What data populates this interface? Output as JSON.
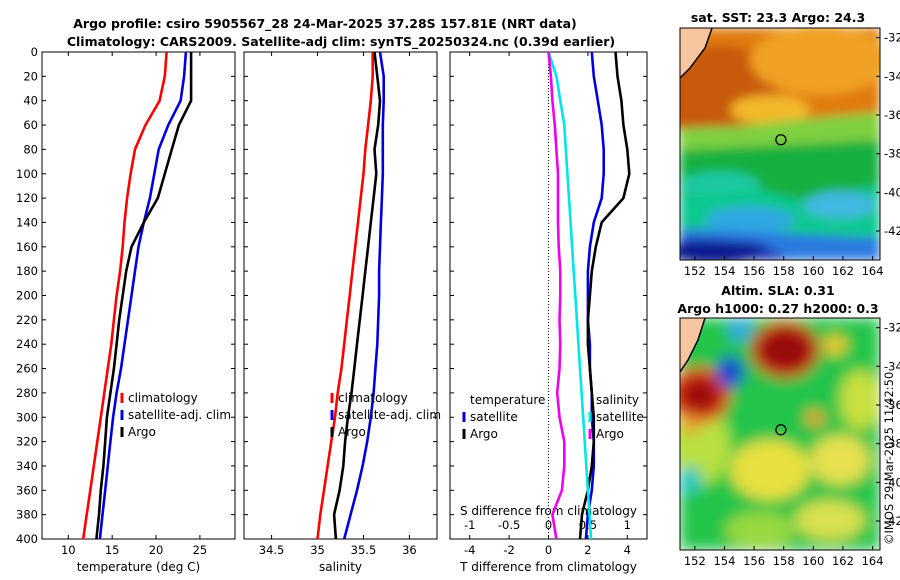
{
  "figure": {
    "title_line1": "Argo profile: csiro 5905567_28 24-Mar-2025 37.28S 157.81E (NRT data)",
    "title_line2": "Climatology: CARS2009. Satellite-adj clim: synTS_20250324.nc (0.39d earlier)",
    "timestamp": "©IMOS 29-Mar-2025 11:42:50"
  },
  "colors": {
    "climatology": "#ff0000",
    "satellite": "#0000dd",
    "argo": "#000000",
    "salinity_satellite": "#00e5e5",
    "salinity_argo": "#ee00ee"
  },
  "chart_data": [
    {
      "type": "line",
      "id": "temperature",
      "xlabel": "temperature (deg C)",
      "ylabel": "",
      "xlim": [
        7,
        29
      ],
      "ylim": [
        0,
        400
      ],
      "y_reversed": true,
      "xticks": [
        10,
        15,
        20,
        25
      ],
      "yticks": [
        0,
        20,
        40,
        60,
        80,
        100,
        120,
        140,
        160,
        180,
        200,
        220,
        240,
        260,
        280,
        300,
        320,
        340,
        360,
        380,
        400
      ],
      "legend": [
        "climatology",
        "satellite-adj. clim",
        "Argo"
      ],
      "legend_position": "lower-right",
      "depth": [
        0,
        20,
        40,
        60,
        80,
        100,
        120,
        140,
        160,
        180,
        200,
        220,
        240,
        260,
        280,
        300,
        320,
        340,
        360,
        380,
        400
      ],
      "series": [
        {
          "name": "climatology",
          "color_key": "climatology",
          "values": [
            21.2,
            21.0,
            20.4,
            18.8,
            17.6,
            17.1,
            16.7,
            16.4,
            16.2,
            15.9,
            15.5,
            15.2,
            14.9,
            14.5,
            14.1,
            13.7,
            13.3,
            12.9,
            12.5,
            12.1,
            11.7
          ]
        },
        {
          "name": "satellite-adj. clim",
          "color_key": "satellite",
          "values": [
            23.4,
            23.2,
            22.8,
            21.4,
            20.3,
            19.8,
            19.3,
            18.6,
            18.0,
            17.6,
            17.2,
            16.8,
            16.4,
            16.0,
            15.5,
            15.1,
            14.8,
            14.5,
            14.2,
            13.9,
            13.6
          ]
        },
        {
          "name": "Argo",
          "color_key": "argo",
          "values": [
            24.0,
            24.0,
            24.0,
            22.6,
            21.8,
            21.0,
            20.2,
            18.6,
            17.2,
            16.6,
            16.2,
            15.8,
            15.5,
            15.2,
            14.8,
            14.4,
            14.2,
            14.0,
            13.7,
            13.5,
            13.2
          ]
        }
      ]
    },
    {
      "type": "line",
      "id": "salinity",
      "xlabel": "salinity",
      "xlim": [
        34.2,
        36.3
      ],
      "ylim": [
        0,
        400
      ],
      "y_reversed": true,
      "xticks": [
        34.5,
        35,
        35.5,
        36
      ],
      "legend": [
        "climatology",
        "satellite-adj. clim",
        "Argo"
      ],
      "legend_position": "lower-right",
      "depth": [
        0,
        20,
        40,
        60,
        80,
        100,
        120,
        140,
        160,
        180,
        200,
        220,
        240,
        260,
        280,
        300,
        320,
        340,
        360,
        380,
        400
      ],
      "series": [
        {
          "name": "climatology",
          "color_key": "climatology",
          "values": [
            35.6,
            35.6,
            35.58,
            35.55,
            35.52,
            35.5,
            35.47,
            35.44,
            35.41,
            35.38,
            35.35,
            35.32,
            35.29,
            35.26,
            35.22,
            35.19,
            35.15,
            35.11,
            35.07,
            35.03,
            35.0
          ]
        },
        {
          "name": "satellite-adj. clim",
          "color_key": "satellite",
          "values": [
            35.68,
            35.72,
            35.72,
            35.71,
            35.71,
            35.71,
            35.7,
            35.69,
            35.68,
            35.67,
            35.67,
            35.66,
            35.65,
            35.63,
            35.61,
            35.58,
            35.54,
            35.49,
            35.43,
            35.36,
            35.29
          ]
        },
        {
          "name": "Argo",
          "color_key": "argo",
          "values": [
            35.62,
            35.65,
            35.68,
            35.66,
            35.62,
            35.64,
            35.61,
            35.58,
            35.55,
            35.52,
            35.49,
            35.46,
            35.43,
            35.4,
            35.37,
            35.33,
            35.3,
            35.28,
            35.24,
            35.18,
            35.2
          ]
        }
      ]
    },
    {
      "type": "line",
      "id": "differences",
      "xlabel": "T difference from climatology",
      "x2label": "S difference from climatology",
      "xlim": [
        -5,
        5
      ],
      "x2lim": [
        -1.25,
        1.25
      ],
      "ylim": [
        0,
        400
      ],
      "y_reversed": true,
      "xticks": [
        -4,
        -2,
        0,
        2,
        4
      ],
      "x2ticks": [
        -1,
        -0.5,
        0,
        0.5,
        1
      ],
      "x2ticklabels": [
        "-1",
        "-0.5",
        "0",
        "0.5",
        "1"
      ],
      "zero_line": 0,
      "legend_groups": [
        {
          "heading": "temperature",
          "items": [
            "satellite",
            "Argo"
          ]
        },
        {
          "heading": "salinity",
          "items": [
            "satellite",
            "Argo"
          ]
        }
      ],
      "depth": [
        0,
        20,
        40,
        60,
        80,
        100,
        120,
        140,
        160,
        180,
        200,
        220,
        240,
        260,
        280,
        300,
        320,
        340,
        360,
        380,
        400
      ],
      "series": [
        {
          "name": "temperature satellite",
          "color_key": "satellite",
          "axis": "T",
          "values": [
            2.2,
            2.3,
            2.5,
            2.7,
            2.8,
            2.8,
            2.7,
            2.3,
            2.1,
            2.0,
            2.0,
            2.0,
            2.1,
            2.1,
            2.2,
            2.2,
            2.3,
            2.3,
            2.2,
            2.0,
            1.9
          ]
        },
        {
          "name": "temperature Argo",
          "color_key": "argo",
          "axis": "T",
          "values": [
            3.4,
            3.5,
            3.7,
            3.8,
            4.0,
            4.1,
            3.8,
            2.7,
            2.4,
            2.2,
            2.1,
            2.0,
            2.0,
            2.1,
            2.2,
            2.3,
            2.3,
            2.2,
            2.0,
            1.7,
            1.6
          ]
        },
        {
          "name": "salinity satellite",
          "color_key": "salinity_satellite",
          "axis": "S",
          "values": [
            0.0,
            0.1,
            0.15,
            0.2,
            0.22,
            0.24,
            0.26,
            0.28,
            0.3,
            0.32,
            0.34,
            0.36,
            0.38,
            0.4,
            0.42,
            0.44,
            0.46,
            0.48,
            0.5,
            0.52,
            0.54
          ]
        },
        {
          "name": "salinity Argo",
          "color_key": "salinity_argo",
          "axis": "S",
          "values": [
            0.0,
            0.03,
            0.05,
            0.08,
            0.1,
            0.12,
            0.12,
            0.12,
            0.13,
            0.15,
            0.15,
            0.14,
            0.15,
            0.14,
            0.11,
            0.14,
            0.2,
            0.2,
            0.17,
            0.05,
            0.1
          ]
        }
      ]
    },
    {
      "type": "heatmap",
      "id": "sst_map",
      "title": "sat. SST: 23.3 Argo: 24.3",
      "xlim": [
        151,
        164.5
      ],
      "ylim": [
        -43.5,
        -31.5
      ],
      "xticks": [
        152,
        154,
        156,
        158,
        160,
        162,
        164
      ],
      "yticks": [
        -32,
        -34,
        -36,
        -38,
        -40,
        -42
      ],
      "profile_marker": {
        "lon": 157.81,
        "lat": -37.28
      }
    },
    {
      "type": "heatmap",
      "id": "sla_map",
      "title_line1": "Altim. SLA: 0.31",
      "title_line2": "Argo h1000: 0.27 h2000: 0.3",
      "xlim": [
        151,
        164.5
      ],
      "ylim": [
        -43.5,
        -31.5
      ],
      "xticks": [
        152,
        154,
        156,
        158,
        160,
        162,
        164
      ],
      "yticks": [
        -32,
        -34,
        -36,
        -38,
        -40,
        -42
      ],
      "profile_marker": {
        "lon": 157.81,
        "lat": -37.28
      }
    }
  ]
}
